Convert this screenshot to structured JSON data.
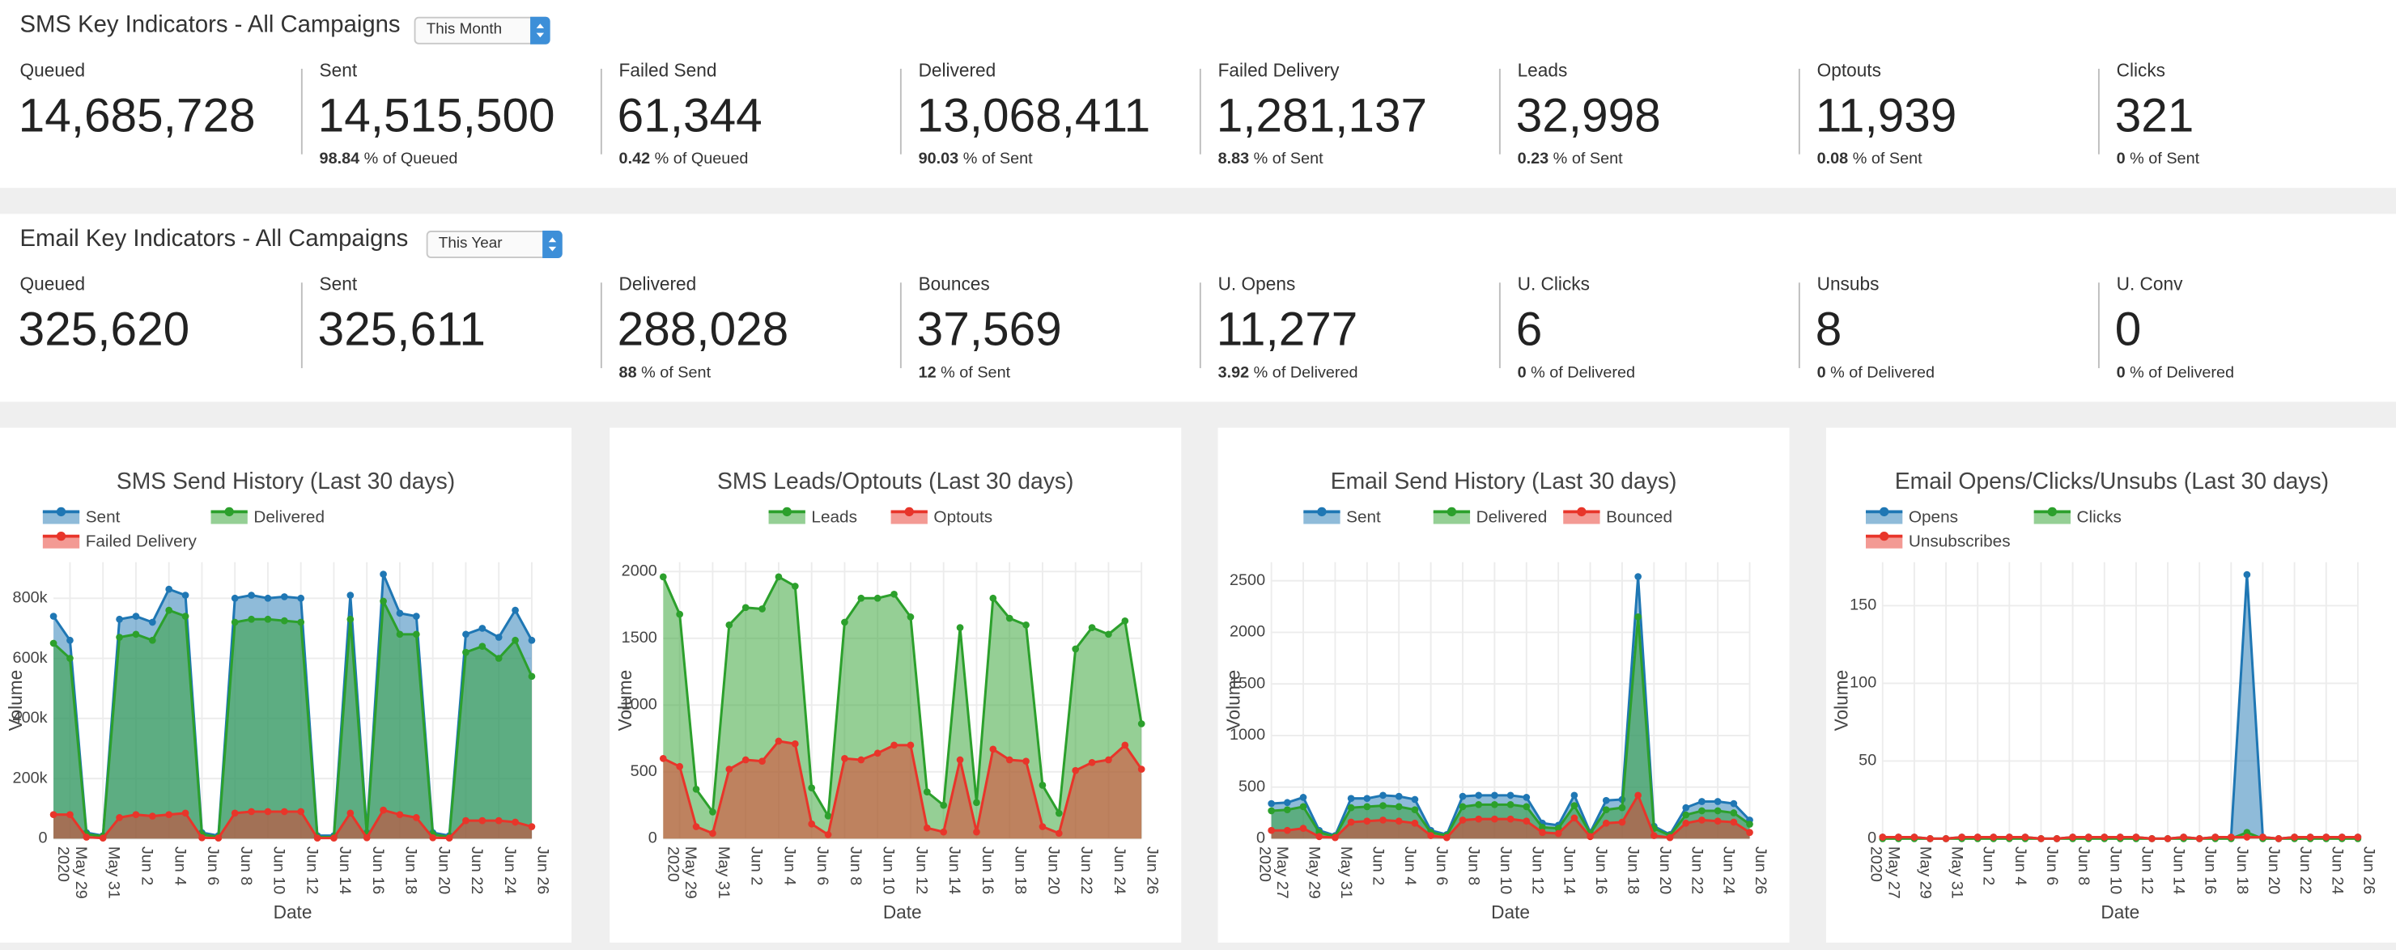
{
  "sms_kpis": {
    "title": "SMS Key Indicators - All Campaigns",
    "period": "This Month",
    "items": [
      {
        "label": "Queued",
        "value": "14,685,728"
      },
      {
        "label": "Sent",
        "value": "14,515,500",
        "rate": "98.84",
        "basis": "% of Queued"
      },
      {
        "label": "Failed Send",
        "value": "61,344",
        "rate": "0.42",
        "basis": "% of Queued"
      },
      {
        "label": "Delivered",
        "value": "13,068,411",
        "rate": "90.03",
        "basis": "% of Sent"
      },
      {
        "label": "Failed Delivery",
        "value": "1,281,137",
        "rate": "8.83",
        "basis": "% of Sent"
      },
      {
        "label": "Leads",
        "value": "32,998",
        "rate": "0.23",
        "basis": "% of Sent"
      },
      {
        "label": "Optouts",
        "value": "11,939",
        "rate": "0.08",
        "basis": "% of Sent"
      },
      {
        "label": "Clicks",
        "value": "321",
        "rate": "0",
        "basis": "% of Sent"
      }
    ]
  },
  "email_kpis": {
    "title": "Email Key Indicators - All Campaigns",
    "period": "This Year",
    "items": [
      {
        "label": "Queued",
        "value": "325,620"
      },
      {
        "label": "Sent",
        "value": "325,611"
      },
      {
        "label": "Delivered",
        "value": "288,028",
        "rate": "88",
        "basis": "% of Sent"
      },
      {
        "label": "Bounces",
        "value": "37,569",
        "rate": "12",
        "basis": "% of Sent"
      },
      {
        "label": "U. Opens",
        "value": "11,277",
        "rate": "3.92",
        "basis": "% of Delivered"
      },
      {
        "label": "U. Clicks",
        "value": "6",
        "rate": "0",
        "basis": "% of Delivered"
      },
      {
        "label": "Unsubs",
        "value": "8",
        "rate": "0",
        "basis": "% of Delivered"
      },
      {
        "label": "U. Conv",
        "value": "0",
        "rate": "0",
        "basis": "% of Delivered"
      }
    ]
  },
  "chart_data": [
    {
      "type": "area",
      "title": "SMS Send History (Last 30 days)",
      "xlabel": "Date",
      "ylabel": "Volume",
      "grid": true,
      "x": [
        "2020-05-28",
        "2020-05-29",
        "2020-05-30",
        "2020-05-31",
        "2020-06-01",
        "2020-06-02",
        "2020-06-03",
        "2020-06-04",
        "2020-06-05",
        "2020-06-06",
        "2020-06-07",
        "2020-06-08",
        "2020-06-09",
        "2020-06-10",
        "2020-06-11",
        "2020-06-12",
        "2020-06-13",
        "2020-06-14",
        "2020-06-15",
        "2020-06-16",
        "2020-06-17",
        "2020-06-18",
        "2020-06-19",
        "2020-06-20",
        "2020-06-21",
        "2020-06-22",
        "2020-06-23",
        "2020-06-24",
        "2020-06-25",
        "2020-06-26"
      ],
      "xlim": [
        "2020-05-28",
        "2020-06-26"
      ],
      "xticks": [
        {
          "value": "2020-05-29",
          "label": "May 29",
          "year": "2020"
        },
        {
          "value": "2020-05-31",
          "label": "May 31"
        },
        {
          "value": "2020-06-02",
          "label": "Jun 2"
        },
        {
          "value": "2020-06-04",
          "label": "Jun 4"
        },
        {
          "value": "2020-06-06",
          "label": "Jun 6"
        },
        {
          "value": "2020-06-08",
          "label": "Jun 8"
        },
        {
          "value": "2020-06-10",
          "label": "Jun 10"
        },
        {
          "value": "2020-06-12",
          "label": "Jun 12"
        },
        {
          "value": "2020-06-14",
          "label": "Jun 14"
        },
        {
          "value": "2020-06-16",
          "label": "Jun 16"
        },
        {
          "value": "2020-06-18",
          "label": "Jun 18"
        },
        {
          "value": "2020-06-20",
          "label": "Jun 20"
        },
        {
          "value": "2020-06-22",
          "label": "Jun 22"
        },
        {
          "value": "2020-06-24",
          "label": "Jun 24"
        },
        {
          "value": "2020-06-26",
          "label": "Jun 26"
        }
      ],
      "ylim": [
        0,
        920000
      ],
      "yticks": [
        0,
        {
          "value": 200000,
          "label": "200k"
        },
        {
          "value": 400000,
          "label": "400k"
        },
        {
          "value": 600000,
          "label": "600k"
        },
        {
          "value": 800000,
          "label": "800k"
        }
      ],
      "series": [
        {
          "name": "Sent",
          "color": "#1f77b4",
          "values": [
            740000,
            660000,
            20000,
            10000,
            730000,
            740000,
            720000,
            830000,
            810000,
            20000,
            10000,
            800000,
            810000,
            800000,
            805000,
            800000,
            10000,
            10000,
            810000,
            20000,
            880000,
            750000,
            740000,
            20000,
            10000,
            680000,
            700000,
            670000,
            760000,
            660000
          ]
        },
        {
          "name": "Delivered",
          "color": "#2ca02c",
          "values": [
            650000,
            600000,
            15000,
            8000,
            670000,
            680000,
            660000,
            760000,
            740000,
            15000,
            5000,
            720000,
            730000,
            730000,
            725000,
            720000,
            5000,
            5000,
            730000,
            15000,
            790000,
            680000,
            680000,
            15000,
            5000,
            620000,
            640000,
            600000,
            660000,
            540000
          ]
        },
        {
          "name": "Failed Delivery",
          "color": "#e8352a",
          "values": [
            80000,
            80000,
            5000,
            2000,
            70000,
            80000,
            75000,
            80000,
            85000,
            3000,
            2000,
            85000,
            90000,
            90000,
            90000,
            90000,
            2000,
            2000,
            85000,
            3000,
            95000,
            80000,
            70000,
            3000,
            2000,
            60000,
            60000,
            60000,
            55000,
            40000
          ]
        }
      ]
    },
    {
      "type": "area",
      "title": "SMS Leads/Optouts (Last 30 days)",
      "xlabel": "Date",
      "ylabel": "Volume",
      "grid": true,
      "x": [
        "2020-05-28",
        "2020-05-29",
        "2020-05-30",
        "2020-05-31",
        "2020-06-01",
        "2020-06-02",
        "2020-06-03",
        "2020-06-04",
        "2020-06-05",
        "2020-06-06",
        "2020-06-07",
        "2020-06-08",
        "2020-06-09",
        "2020-06-10",
        "2020-06-11",
        "2020-06-12",
        "2020-06-13",
        "2020-06-14",
        "2020-06-15",
        "2020-06-16",
        "2020-06-17",
        "2020-06-18",
        "2020-06-19",
        "2020-06-20",
        "2020-06-21",
        "2020-06-22",
        "2020-06-23",
        "2020-06-24",
        "2020-06-25",
        "2020-06-26"
      ],
      "xlim": [
        "2020-05-28",
        "2020-06-26"
      ],
      "xticks": [
        {
          "value": "2020-05-29",
          "label": "May 29",
          "year": "2020"
        },
        {
          "value": "2020-05-31",
          "label": "May 31"
        },
        {
          "value": "2020-06-02",
          "label": "Jun 2"
        },
        {
          "value": "2020-06-04",
          "label": "Jun 4"
        },
        {
          "value": "2020-06-06",
          "label": "Jun 6"
        },
        {
          "value": "2020-06-08",
          "label": "Jun 8"
        },
        {
          "value": "2020-06-10",
          "label": "Jun 10"
        },
        {
          "value": "2020-06-12",
          "label": "Jun 12"
        },
        {
          "value": "2020-06-14",
          "label": "Jun 14"
        },
        {
          "value": "2020-06-16",
          "label": "Jun 16"
        },
        {
          "value": "2020-06-18",
          "label": "Jun 18"
        },
        {
          "value": "2020-06-20",
          "label": "Jun 20"
        },
        {
          "value": "2020-06-22",
          "label": "Jun 22"
        },
        {
          "value": "2020-06-24",
          "label": "Jun 24"
        },
        {
          "value": "2020-06-26",
          "label": "Jun 26"
        }
      ],
      "ylim": [
        0,
        2070
      ],
      "yticks": [
        0,
        500,
        1000,
        1500,
        2000
      ],
      "series": [
        {
          "name": "Leads",
          "color": "#2ca02c",
          "values": [
            1960,
            1680,
            370,
            200,
            1600,
            1730,
            1720,
            1960,
            1890,
            380,
            170,
            1620,
            1800,
            1800,
            1830,
            1660,
            350,
            250,
            1580,
            270,
            1800,
            1650,
            1600,
            400,
            190,
            1420,
            1580,
            1530,
            1630,
            860
          ]
        },
        {
          "name": "Optouts",
          "color": "#e8352a",
          "values": [
            600,
            540,
            90,
            40,
            520,
            590,
            580,
            730,
            710,
            110,
            30,
            600,
            590,
            640,
            700,
            700,
            80,
            50,
            590,
            50,
            670,
            590,
            580,
            90,
            40,
            510,
            570,
            590,
            700,
            520
          ]
        }
      ]
    },
    {
      "type": "area",
      "title": "Email Send History (Last 30 days)",
      "xlabel": "Date",
      "ylabel": "Volume",
      "grid": true,
      "x": [
        "2020-05-27",
        "2020-05-28",
        "2020-05-29",
        "2020-05-30",
        "2020-05-31",
        "2020-06-01",
        "2020-06-02",
        "2020-06-03",
        "2020-06-04",
        "2020-06-05",
        "2020-06-06",
        "2020-06-07",
        "2020-06-08",
        "2020-06-09",
        "2020-06-10",
        "2020-06-11",
        "2020-06-12",
        "2020-06-13",
        "2020-06-14",
        "2020-06-15",
        "2020-06-16",
        "2020-06-17",
        "2020-06-18",
        "2020-06-19",
        "2020-06-20",
        "2020-06-21",
        "2020-06-22",
        "2020-06-23",
        "2020-06-24",
        "2020-06-25",
        "2020-06-26"
      ],
      "xlim": [
        "2020-05-27",
        "2020-06-26"
      ],
      "xticks": [
        {
          "value": "2020-05-27",
          "label": "May 27",
          "year": "2020"
        },
        {
          "value": "2020-05-29",
          "label": "May 29"
        },
        {
          "value": "2020-05-31",
          "label": "May 31"
        },
        {
          "value": "2020-06-02",
          "label": "Jun 2"
        },
        {
          "value": "2020-06-04",
          "label": "Jun 4"
        },
        {
          "value": "2020-06-06",
          "label": "Jun 6"
        },
        {
          "value": "2020-06-08",
          "label": "Jun 8"
        },
        {
          "value": "2020-06-10",
          "label": "Jun 10"
        },
        {
          "value": "2020-06-12",
          "label": "Jun 12"
        },
        {
          "value": "2020-06-14",
          "label": "Jun 14"
        },
        {
          "value": "2020-06-16",
          "label": "Jun 16"
        },
        {
          "value": "2020-06-18",
          "label": "Jun 18"
        },
        {
          "value": "2020-06-20",
          "label": "Jun 20"
        },
        {
          "value": "2020-06-22",
          "label": "Jun 22"
        },
        {
          "value": "2020-06-24",
          "label": "Jun 24"
        },
        {
          "value": "2020-06-26",
          "label": "Jun 26"
        }
      ],
      "ylim": [
        0,
        2680
      ],
      "yticks": [
        0,
        500,
        1000,
        1500,
        2000,
        2500
      ],
      "series": [
        {
          "name": "Sent",
          "color": "#1f77b4",
          "values": [
            340,
            350,
            400,
            80,
            30,
            390,
            390,
            420,
            410,
            380,
            80,
            40,
            410,
            420,
            420,
            420,
            400,
            150,
            130,
            420,
            60,
            370,
            380,
            2540,
            120,
            40,
            300,
            360,
            360,
            340,
            180
          ]
        },
        {
          "name": "Delivered",
          "color": "#2ca02c",
          "values": [
            270,
            280,
            310,
            60,
            20,
            300,
            310,
            320,
            310,
            280,
            60,
            30,
            310,
            330,
            330,
            330,
            310,
            110,
            100,
            320,
            50,
            280,
            300,
            2150,
            100,
            30,
            230,
            270,
            270,
            250,
            140
          ]
        },
        {
          "name": "Bounced",
          "color": "#e8352a",
          "values": [
            80,
            80,
            100,
            20,
            10,
            160,
            170,
            180,
            170,
            150,
            30,
            10,
            180,
            190,
            190,
            190,
            170,
            60,
            50,
            200,
            20,
            150,
            160,
            420,
            30,
            10,
            150,
            180,
            170,
            160,
            60
          ]
        }
      ]
    },
    {
      "type": "area",
      "title": "Email Opens/Clicks/Unsubs (Last 30 days)",
      "xlabel": "Date",
      "ylabel": "Volume",
      "grid": true,
      "x": [
        "2020-05-27",
        "2020-05-28",
        "2020-05-29",
        "2020-05-30",
        "2020-05-31",
        "2020-06-01",
        "2020-06-02",
        "2020-06-03",
        "2020-06-04",
        "2020-06-05",
        "2020-06-06",
        "2020-06-07",
        "2020-06-08",
        "2020-06-09",
        "2020-06-10",
        "2020-06-11",
        "2020-06-12",
        "2020-06-13",
        "2020-06-14",
        "2020-06-15",
        "2020-06-16",
        "2020-06-17",
        "2020-06-18",
        "2020-06-19",
        "2020-06-20",
        "2020-06-21",
        "2020-06-22",
        "2020-06-23",
        "2020-06-24",
        "2020-06-25",
        "2020-06-26"
      ],
      "xlim": [
        "2020-05-27",
        "2020-06-26"
      ],
      "xticks": [
        {
          "value": "2020-05-27",
          "label": "May 27",
          "year": "2020"
        },
        {
          "value": "2020-05-29",
          "label": "May 29"
        },
        {
          "value": "2020-05-31",
          "label": "May 31"
        },
        {
          "value": "2020-06-02",
          "label": "Jun 2"
        },
        {
          "value": "2020-06-04",
          "label": "Jun 4"
        },
        {
          "value": "2020-06-06",
          "label": "Jun 6"
        },
        {
          "value": "2020-06-08",
          "label": "Jun 8"
        },
        {
          "value": "2020-06-10",
          "label": "Jun 10"
        },
        {
          "value": "2020-06-12",
          "label": "Jun 12"
        },
        {
          "value": "2020-06-14",
          "label": "Jun 14"
        },
        {
          "value": "2020-06-16",
          "label": "Jun 16"
        },
        {
          "value": "2020-06-18",
          "label": "Jun 18"
        },
        {
          "value": "2020-06-20",
          "label": "Jun 20"
        },
        {
          "value": "2020-06-22",
          "label": "Jun 22"
        },
        {
          "value": "2020-06-24",
          "label": "Jun 24"
        },
        {
          "value": "2020-06-26",
          "label": "Jun 26"
        }
      ],
      "ylim": [
        0,
        178
      ],
      "yticks": [
        0,
        50,
        100,
        150
      ],
      "series": [
        {
          "name": "Opens",
          "color": "#1f77b4",
          "values": [
            1,
            1,
            1,
            0,
            0,
            1,
            1,
            1,
            1,
            1,
            0,
            0,
            1,
            1,
            1,
            1,
            1,
            0,
            0,
            1,
            0,
            1,
            1,
            170,
            1,
            0,
            1,
            1,
            1,
            1,
            1
          ]
        },
        {
          "name": "Clicks",
          "color": "#2ca02c",
          "values": [
            0,
            0,
            0,
            0,
            0,
            0,
            0,
            0,
            0,
            0,
            0,
            0,
            0,
            0,
            0,
            0,
            0,
            0,
            0,
            0,
            0,
            0,
            0,
            4,
            0,
            0,
            0,
            0,
            0,
            0,
            0
          ]
        },
        {
          "name": "Unsubscribes",
          "color": "#e8352a",
          "values": [
            1,
            1,
            1,
            0,
            0,
            1,
            1,
            1,
            1,
            1,
            0,
            0,
            1,
            1,
            1,
            1,
            1,
            0,
            0,
            1,
            0,
            1,
            1,
            1,
            1,
            0,
            1,
            1,
            1,
            1,
            1
          ]
        }
      ]
    }
  ]
}
